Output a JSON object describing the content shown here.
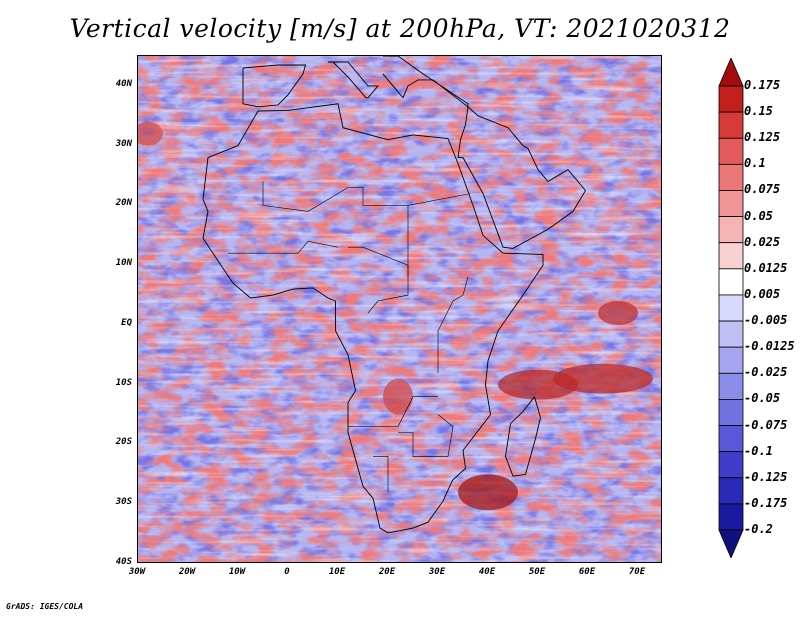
{
  "title": "Vertical velocity [m/s] at 200hPa, VT: 2021020312",
  "footer": "GrADS: IGES/COLA",
  "latitude_labels": [
    "40N",
    "30N",
    "20N",
    "10N",
    "EQ",
    "10S",
    "20S",
    "30S",
    "40S"
  ],
  "longitude_labels": [
    "30W",
    "20W",
    "10W",
    "0",
    "10E",
    "20E",
    "30E",
    "40E",
    "50E",
    "60E",
    "70E"
  ],
  "map_extent": {
    "lon_min": -30,
    "lon_max": 75,
    "lat_min": -40,
    "lat_max": 45
  },
  "colorbar": {
    "labels": [
      "0.175",
      "0.15",
      "0.125",
      "0.1",
      "0.075",
      "0.05",
      "0.025",
      "0.0125",
      "0.005",
      "-0.005",
      "-0.0125",
      "-0.025",
      "-0.05",
      "-0.075",
      "-0.1",
      "-0.125",
      "-0.175",
      "-0.2"
    ],
    "colors": [
      "#a50d0d",
      "#c41f1f",
      "#d83a3a",
      "#e35a5a",
      "#ea7878",
      "#f09696",
      "#f5b3b3",
      "#f9d1d1",
      "#ffffff",
      "#d8d8fb",
      "#c0c0f6",
      "#a6a6f0",
      "#8c8ce9",
      "#7272e2",
      "#5858d8",
      "#3e3ecb",
      "#2a2ab8",
      "#1a1aa0",
      "#10107e"
    ]
  }
}
